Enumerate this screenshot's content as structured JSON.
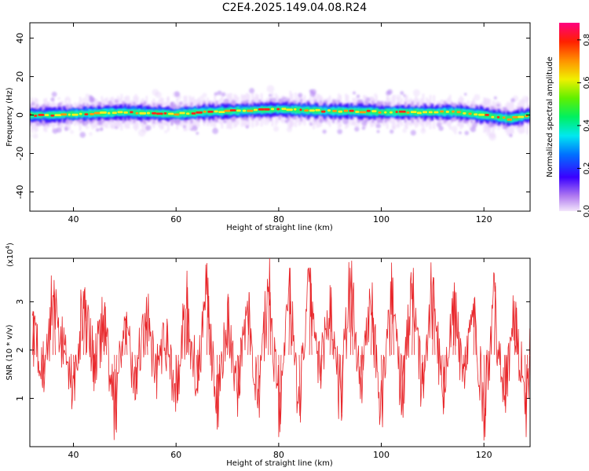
{
  "figure": {
    "title": "C2E4.2025.149.04.08.R24"
  },
  "chart_data": [
    {
      "type": "heatmap",
      "title": "C2E4.2025.149.04.08.R24",
      "xlabel": "Height of straight line (km)",
      "ylabel": "Frequency (Hz)",
      "xlim": [
        31.5,
        129
      ],
      "ylim": [
        -50,
        48
      ],
      "xticks": [
        40,
        60,
        80,
        100,
        120
      ],
      "yticks": [
        -40,
        -20,
        0,
        20,
        40
      ],
      "colorbar": {
        "label": "Normalized spectral amplitude",
        "range": [
          0,
          0.88
        ],
        "ticks": [
          0.0,
          0.2,
          0.4,
          0.6,
          0.8
        ]
      },
      "grid": false,
      "description_of_signal": {
        "center_frequency_hz_by_height": {
          "x": [
            32,
            35,
            40,
            45,
            50,
            55,
            60,
            65,
            70,
            75,
            80,
            85,
            90,
            95,
            100,
            105,
            110,
            115,
            120,
            125,
            129
          ],
          "y": [
            0,
            0,
            0.5,
            1,
            1.5,
            1,
            0.5,
            1.5,
            2,
            2.5,
            3,
            2.5,
            2,
            2,
            1.5,
            1.5,
            1.5,
            1.5,
            0,
            -2,
            0
          ]
        },
        "peak_amplitude": 0.88
      }
    },
    {
      "type": "line",
      "xlabel": "Height of straight line (km)",
      "ylabel": "SNR (10 * v/v)",
      "multiplier_label": "(x10",
      "multiplier_exp": "4",
      "xlim": [
        31.5,
        129
      ],
      "ylim": [
        0,
        3.9
      ],
      "xticks": [
        40,
        60,
        80,
        100,
        120
      ],
      "yticks": [
        1,
        2,
        3
      ],
      "color": "#e8262a",
      "grid": false,
      "series": [
        {
          "x": [
            32,
            34,
            36,
            38,
            40,
            42,
            44,
            46,
            48,
            50,
            52,
            54,
            56,
            58,
            60,
            62,
            64,
            66,
            68,
            70,
            72,
            74,
            76,
            78,
            80,
            82,
            84,
            86,
            88,
            90,
            92,
            94,
            96,
            98,
            100,
            102,
            104,
            106,
            108,
            110,
            112,
            114,
            116,
            118,
            120,
            122,
            124,
            126,
            128,
            129
          ],
          "values": [
            2.8,
            1.5,
            3.45,
            2.0,
            1.1,
            3.3,
            1.6,
            2.9,
            0.35,
            2.7,
            1.2,
            3.1,
            1.4,
            2.5,
            0.9,
            3.3,
            1.1,
            3.5,
            0.4,
            3.1,
            1.0,
            3.2,
            0.6,
            3.9,
            0.3,
            3.7,
            0.5,
            3.7,
            1.2,
            3.3,
            0.7,
            3.85,
            0.9,
            3.4,
            0.5,
            3.5,
            0.6,
            3.6,
            1.0,
            3.5,
            0.8,
            3.4,
            1.2,
            3.1,
            0.2,
            3.4,
            0.7,
            3.0,
            0.2,
            1.8
          ]
        }
      ]
    }
  ]
}
